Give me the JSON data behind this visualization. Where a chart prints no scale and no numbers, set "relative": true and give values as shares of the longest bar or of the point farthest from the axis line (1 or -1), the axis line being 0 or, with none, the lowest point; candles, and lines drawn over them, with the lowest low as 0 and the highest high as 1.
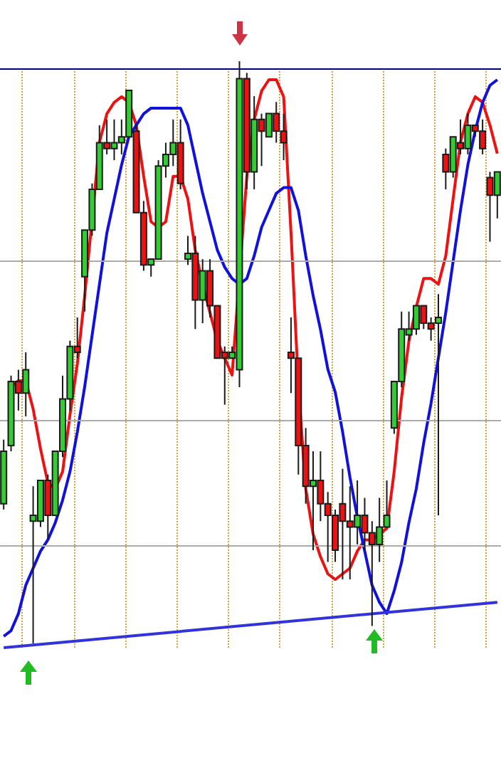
{
  "chart_data": [
    {
      "type": "candlestick",
      "relative": true,
      "tick_labels": false,
      "categories": [
        null,
        null,
        null,
        null,
        null,
        null,
        null,
        null,
        null,
        null,
        null,
        null,
        null,
        null,
        null,
        null,
        null,
        null,
        null,
        null,
        null,
        null,
        null,
        null,
        null,
        null,
        null,
        null,
        null,
        null,
        null,
        null,
        null,
        null,
        null,
        null,
        null,
        null,
        null,
        null,
        null,
        null,
        null,
        null,
        null,
        null,
        null,
        null,
        null,
        null,
        null,
        null,
        null,
        null,
        null,
        null,
        null,
        null,
        null,
        null,
        null,
        null,
        null,
        null,
        null,
        null,
        null,
        null
      ],
      "ohlc": [
        [
          0.24,
          0.35,
          0.23,
          0.33
        ],
        [
          0.34,
          0.46,
          0.33,
          0.45
        ],
        [
          0.45,
          0.47,
          0.4,
          0.43
        ],
        [
          0.43,
          0.5,
          0.39,
          0.47
        ],
        [
          0.21,
          0.27,
          0,
          0.22
        ],
        [
          0.21,
          0.28,
          0.2,
          0.28
        ],
        [
          0.28,
          0.29,
          0.18,
          0.22
        ],
        [
          0.22,
          0.33,
          0.22,
          0.33
        ],
        [
          0.33,
          0.46,
          0.32,
          0.42
        ],
        [
          0.42,
          0.52,
          0.4,
          0.51
        ],
        [
          0.51,
          0.56,
          0.49,
          0.5
        ],
        [
          0.63,
          0.71,
          0.57,
          0.71
        ],
        [
          0.71,
          0.79,
          0.7,
          0.78
        ],
        [
          0.78,
          0.89,
          0.78,
          0.86
        ],
        [
          0.86,
          0.9,
          0.84,
          0.85
        ],
        [
          0.85,
          0.9,
          0.83,
          0.86
        ],
        [
          0.86,
          0.9,
          0.84,
          0.87
        ],
        [
          0.87,
          0.95,
          0.87,
          0.95
        ],
        [
          0.88,
          0.89,
          0.74,
          0.74
        ],
        [
          0.74,
          0.76,
          0.64,
          0.65
        ],
        [
          0.65,
          0.66,
          0.63,
          0.66
        ],
        [
          0.66,
          0.83,
          0.66,
          0.82
        ],
        [
          0.82,
          0.86,
          0.8,
          0.84
        ],
        [
          0.84,
          0.9,
          0.82,
          0.86
        ],
        [
          0.86,
          0.9,
          0.78,
          0.79
        ],
        [
          0.66,
          0.7,
          0.65,
          0.67
        ],
        [
          0.67,
          0.7,
          0.54,
          0.59
        ],
        [
          0.59,
          0.66,
          0.55,
          0.64
        ],
        [
          0.64,
          0.66,
          0.56,
          0.58
        ],
        [
          0.58,
          0.58,
          0.49,
          0.49
        ],
        [
          0.5,
          0.51,
          0.41,
          0.49
        ],
        [
          0.49,
          0.51,
          0.49,
          0.5
        ],
        [
          0.47,
          1,
          0.44,
          0.97
        ],
        [
          0.97,
          0.98,
          0.78,
          0.81
        ],
        [
          0.81,
          0.94,
          0.78,
          0.9
        ],
        [
          0.9,
          0.91,
          0.82,
          0.88
        ],
        [
          0.87,
          0.91,
          0.87,
          0.91
        ],
        [
          0.91,
          0.93,
          0.86,
          0.88
        ],
        [
          0.88,
          0.91,
          0.83,
          0.86
        ],
        [
          0.5,
          0.56,
          0.43,
          0.49
        ],
        [
          0.49,
          0.49,
          0.29,
          0.34
        ],
        [
          0.34,
          0.37,
          0.24,
          0.27
        ],
        [
          0.27,
          0.33,
          0.16,
          0.28
        ],
        [
          0.28,
          0.33,
          0.21,
          0.24
        ],
        [
          0.24,
          0.26,
          0.14,
          0.22
        ],
        [
          0.22,
          0.23,
          0.14,
          0.16
        ],
        [
          0.24,
          0.3,
          0.11,
          0.21
        ],
        [
          0.21,
          0.27,
          0.11,
          0.2
        ],
        [
          0.2,
          0.28,
          0.17,
          0.22
        ],
        [
          0.22,
          0.25,
          0.16,
          0.19
        ],
        [
          0.19,
          0.21,
          0.03,
          0.17
        ],
        [
          0.17,
          0.25,
          0.14,
          0.2
        ],
        [
          0.2,
          0.28,
          0.2,
          0.22
        ],
        [
          0.37,
          0.45,
          0.36,
          0.45
        ],
        [
          0.45,
          0.57,
          0.44,
          0.54
        ],
        [
          0.53,
          0.57,
          0.52,
          0.54
        ],
        [
          0.54,
          0.58,
          0.53,
          0.58
        ],
        [
          0.58,
          0.58,
          0.54,
          0.55
        ],
        [
          0.55,
          0.56,
          0.52,
          0.54
        ],
        [
          0.55,
          0.6,
          0.22,
          0.56
        ],
        [
          0.84,
          0.85,
          0.78,
          0.81
        ],
        [
          0.81,
          0.87,
          0.8,
          0.87
        ],
        [
          0.86,
          0.9,
          0.84,
          0.85
        ],
        [
          0.85,
          0.91,
          0.84,
          0.89
        ],
        [
          0.89,
          0.89,
          0.87,
          0.88
        ],
        [
          0.88,
          0.9,
          0.84,
          0.85
        ],
        [
          0.8,
          0.81,
          0.69,
          0.77
        ],
        [
          0.77,
          0.81,
          0.73,
          0.81
        ]
      ],
      "colors": [
        "#33cc33",
        "#33cc33",
        "#ee1111",
        "#33cc33",
        "#33cc33",
        "#33cc33",
        "#ee1111",
        "#33cc33",
        "#33cc33",
        "#33cc33",
        "#ee1111",
        "#33cc33",
        "#33cc33",
        "#33cc33",
        "#ee1111",
        "#33cc33",
        "#33cc33",
        "#33cc33",
        "#ee1111",
        "#ee1111",
        "#33cc33",
        "#33cc33",
        "#33cc33",
        "#33cc33",
        "#ee1111",
        "#33cc33",
        "#ee1111",
        "#33cc33",
        "#ee1111",
        "#ee1111",
        "#ee1111",
        "#33cc33",
        "#33cc33",
        "#ee1111",
        "#33cc33",
        "#ee1111",
        "#33cc33",
        "#ee1111",
        "#ee1111",
        "#ee1111",
        "#ee1111",
        "#ee1111",
        "#33cc33",
        "#ee1111",
        "#ee1111",
        "#ee1111",
        "#ee1111",
        "#ee1111",
        "#33cc33",
        "#ee1111",
        "#ee1111",
        "#33cc33",
        "#33cc33",
        "#33cc33",
        "#33cc33",
        "#33cc33",
        "#33cc33",
        "#ee1111",
        "#ee1111",
        "#33cc33",
        "#ee1111",
        "#33cc33",
        "#ee1111",
        "#33cc33",
        "#ee1111",
        "#ee1111",
        "#ee1111",
        "#33cc33"
      ]
    },
    {
      "type": "line",
      "relative": true,
      "marker": "none",
      "tick_labels": false,
      "grid": "x",
      "ref_lines": [
        {
          "axis": "y",
          "value": 1.02,
          "color": "#000080"
        },
        {
          "axis": "y",
          "value": 0.68,
          "color": "#aaaaaa"
        },
        {
          "axis": "y",
          "value": 0.4,
          "color": "#aaaaaa"
        },
        {
          "axis": "y",
          "value": 0.18,
          "color": "#aaaaaa"
        }
      ],
      "categories": [
        null,
        null,
        null,
        null,
        null,
        null,
        null,
        null,
        null,
        null,
        null,
        null,
        null,
        null,
        null,
        null,
        null,
        null,
        null,
        null,
        null,
        null,
        null,
        null,
        null,
        null,
        null,
        null,
        null,
        null,
        null,
        null,
        null,
        null,
        null,
        null,
        null,
        null,
        null,
        null,
        null,
        null,
        null,
        null,
        null,
        null,
        null,
        null,
        null,
        null,
        null,
        null,
        null,
        null,
        null,
        null,
        null,
        null,
        null,
        null,
        null,
        null,
        null,
        null,
        null,
        null,
        null,
        null
      ],
      "series": [
        {
          "color": "#ee1111",
          "values": [
            null,
            0.46,
            0.47,
            0.47,
            0.42,
            0.35,
            0.29,
            0.28,
            0.31,
            0.41,
            0.5,
            0.62,
            null,
            0.89,
            0.94,
            0.96,
            0.97,
            0.96,
            0.92,
            0.83,
            0.75,
            0.74,
            0.75,
            0.83,
            0.83,
            0.79,
            0.7,
            0.64,
            0.59,
            0.54,
            0.51,
            0.48,
            null,
            0.83,
            0.93,
            0.98,
            1.0,
            1.0,
            0.97,
            0.73,
            0.46,
            0.28,
            0.2,
            0.16,
            0.13,
            0.12,
            0.13,
            0.14,
            0.17,
            0.19,
            0.19,
            0.2,
            0.21,
            0.31,
            0.44,
            0.54,
            0.6,
            0.65,
            0.65,
            0.64,
            0.69,
            0.79,
            0.89,
            0.94,
            0.97,
            0.96,
            0.92,
            0.87
          ]
        },
        {
          "color": "#1111dd",
          "values": [
            0.02,
            0.03,
            0.06,
            0.11,
            0.14,
            0.17,
            0.19,
            0.22,
            0.26,
            0.31,
            0.38,
            0.46,
            0.55,
            0.64,
            0.73,
            0.79,
            0.85,
            0.9,
            0.92,
            0.94,
            0.95,
            0.95,
            0.95,
            0.95,
            0.95,
            0.92,
            0.86,
            0.8,
            0.75,
            0.7,
            0.67,
            0.65,
            0.64,
            0.65,
            0.69,
            0.74,
            0.77,
            0.8,
            0.81,
            0.81,
            0.77,
            0.69,
            0.62,
            0.56,
            0.49,
            0.45,
            0.38,
            0.3,
            0.23,
            0.17,
            0.11,
            0.08,
            0.06,
            0.1,
            0.15,
            0.22,
            0.28,
            0.36,
            0.43,
            0.51,
            0.59,
            0.68,
            0.77,
            0.85,
            0.91,
            0.96,
            0.99,
            1.0
          ]
        },
        {
          "color": "#3333dd",
          "values": [
            0,
            null,
            null,
            null,
            null,
            null,
            null,
            null,
            null,
            null,
            null,
            null,
            null,
            null,
            null,
            null,
            null,
            null,
            null,
            null,
            null,
            null,
            null,
            null,
            null,
            null,
            null,
            null,
            null,
            null,
            null,
            null,
            null,
            null,
            null,
            null,
            null,
            null,
            null,
            null,
            null,
            null,
            null,
            null,
            null,
            null,
            null,
            null,
            null,
            null,
            null,
            null,
            null,
            null,
            null,
            null,
            null,
            null,
            null,
            null,
            null,
            null,
            null,
            null,
            null,
            null,
            null,
            0.08
          ]
        }
      ]
    }
  ]
}
